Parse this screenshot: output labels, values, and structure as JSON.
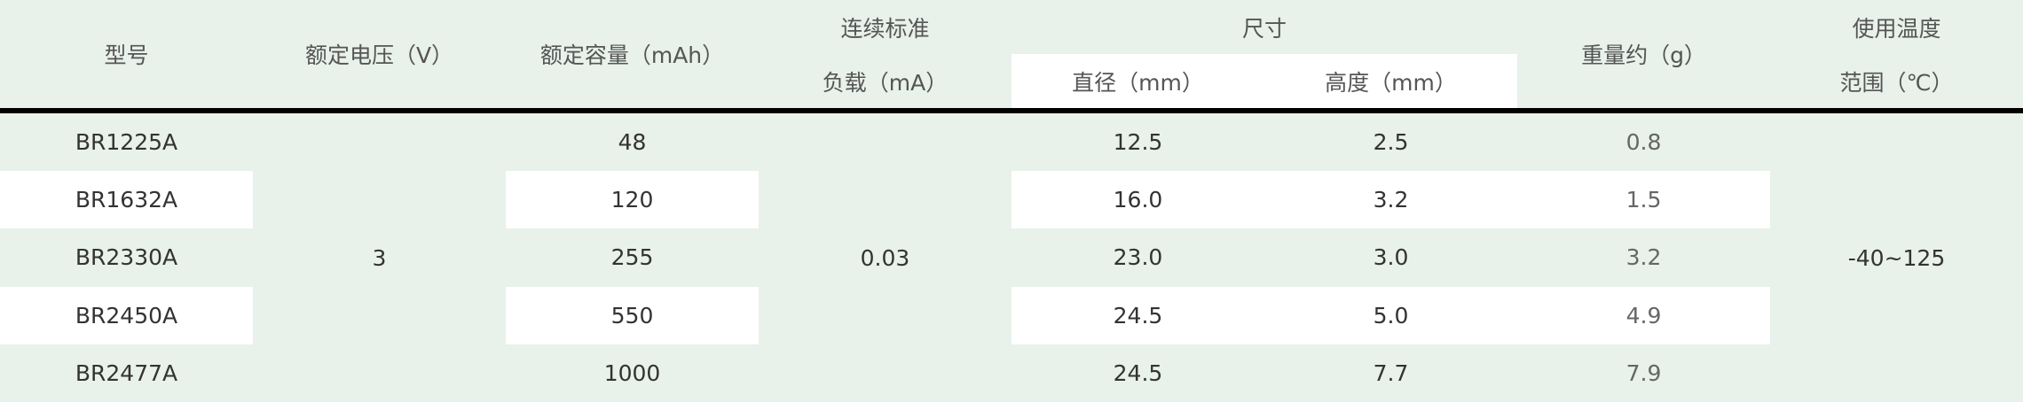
{
  "header": {
    "model": "型号",
    "voltage": "额定电压（V）",
    "capacity": "额定容量（mAh）",
    "load_line1": "连续标准",
    "load_line2": "负载（mA）",
    "size": "尺寸",
    "diameter": "直径（mm）",
    "height": "高度（mm）",
    "weight": "重量约（g）",
    "temp_line1": "使用温度",
    "temp_line2": "范围（℃）"
  },
  "shared": {
    "voltage": "3",
    "load": "0.03",
    "temp": "-40~125"
  },
  "rows": [
    {
      "model": "BR1225A",
      "capacity": "48",
      "diameter": "12.5",
      "height": "2.5",
      "weight": "0.8"
    },
    {
      "model": "BR1632A",
      "capacity": "120",
      "diameter": "16.0",
      "height": "3.2",
      "weight": "1.5"
    },
    {
      "model": "BR2330A",
      "capacity": "255",
      "diameter": "23.0",
      "height": "3.0",
      "weight": "3.2"
    },
    {
      "model": "BR2450A",
      "capacity": "550",
      "diameter": "24.5",
      "height": "5.0",
      "weight": "4.9"
    },
    {
      "model": "BR2477A",
      "capacity": "1000",
      "diameter": "24.5",
      "height": "7.7",
      "weight": "7.9"
    }
  ],
  "colors": {
    "background": "#e8f1ea",
    "stripe": "#ffffff",
    "rule": "#000000"
  }
}
